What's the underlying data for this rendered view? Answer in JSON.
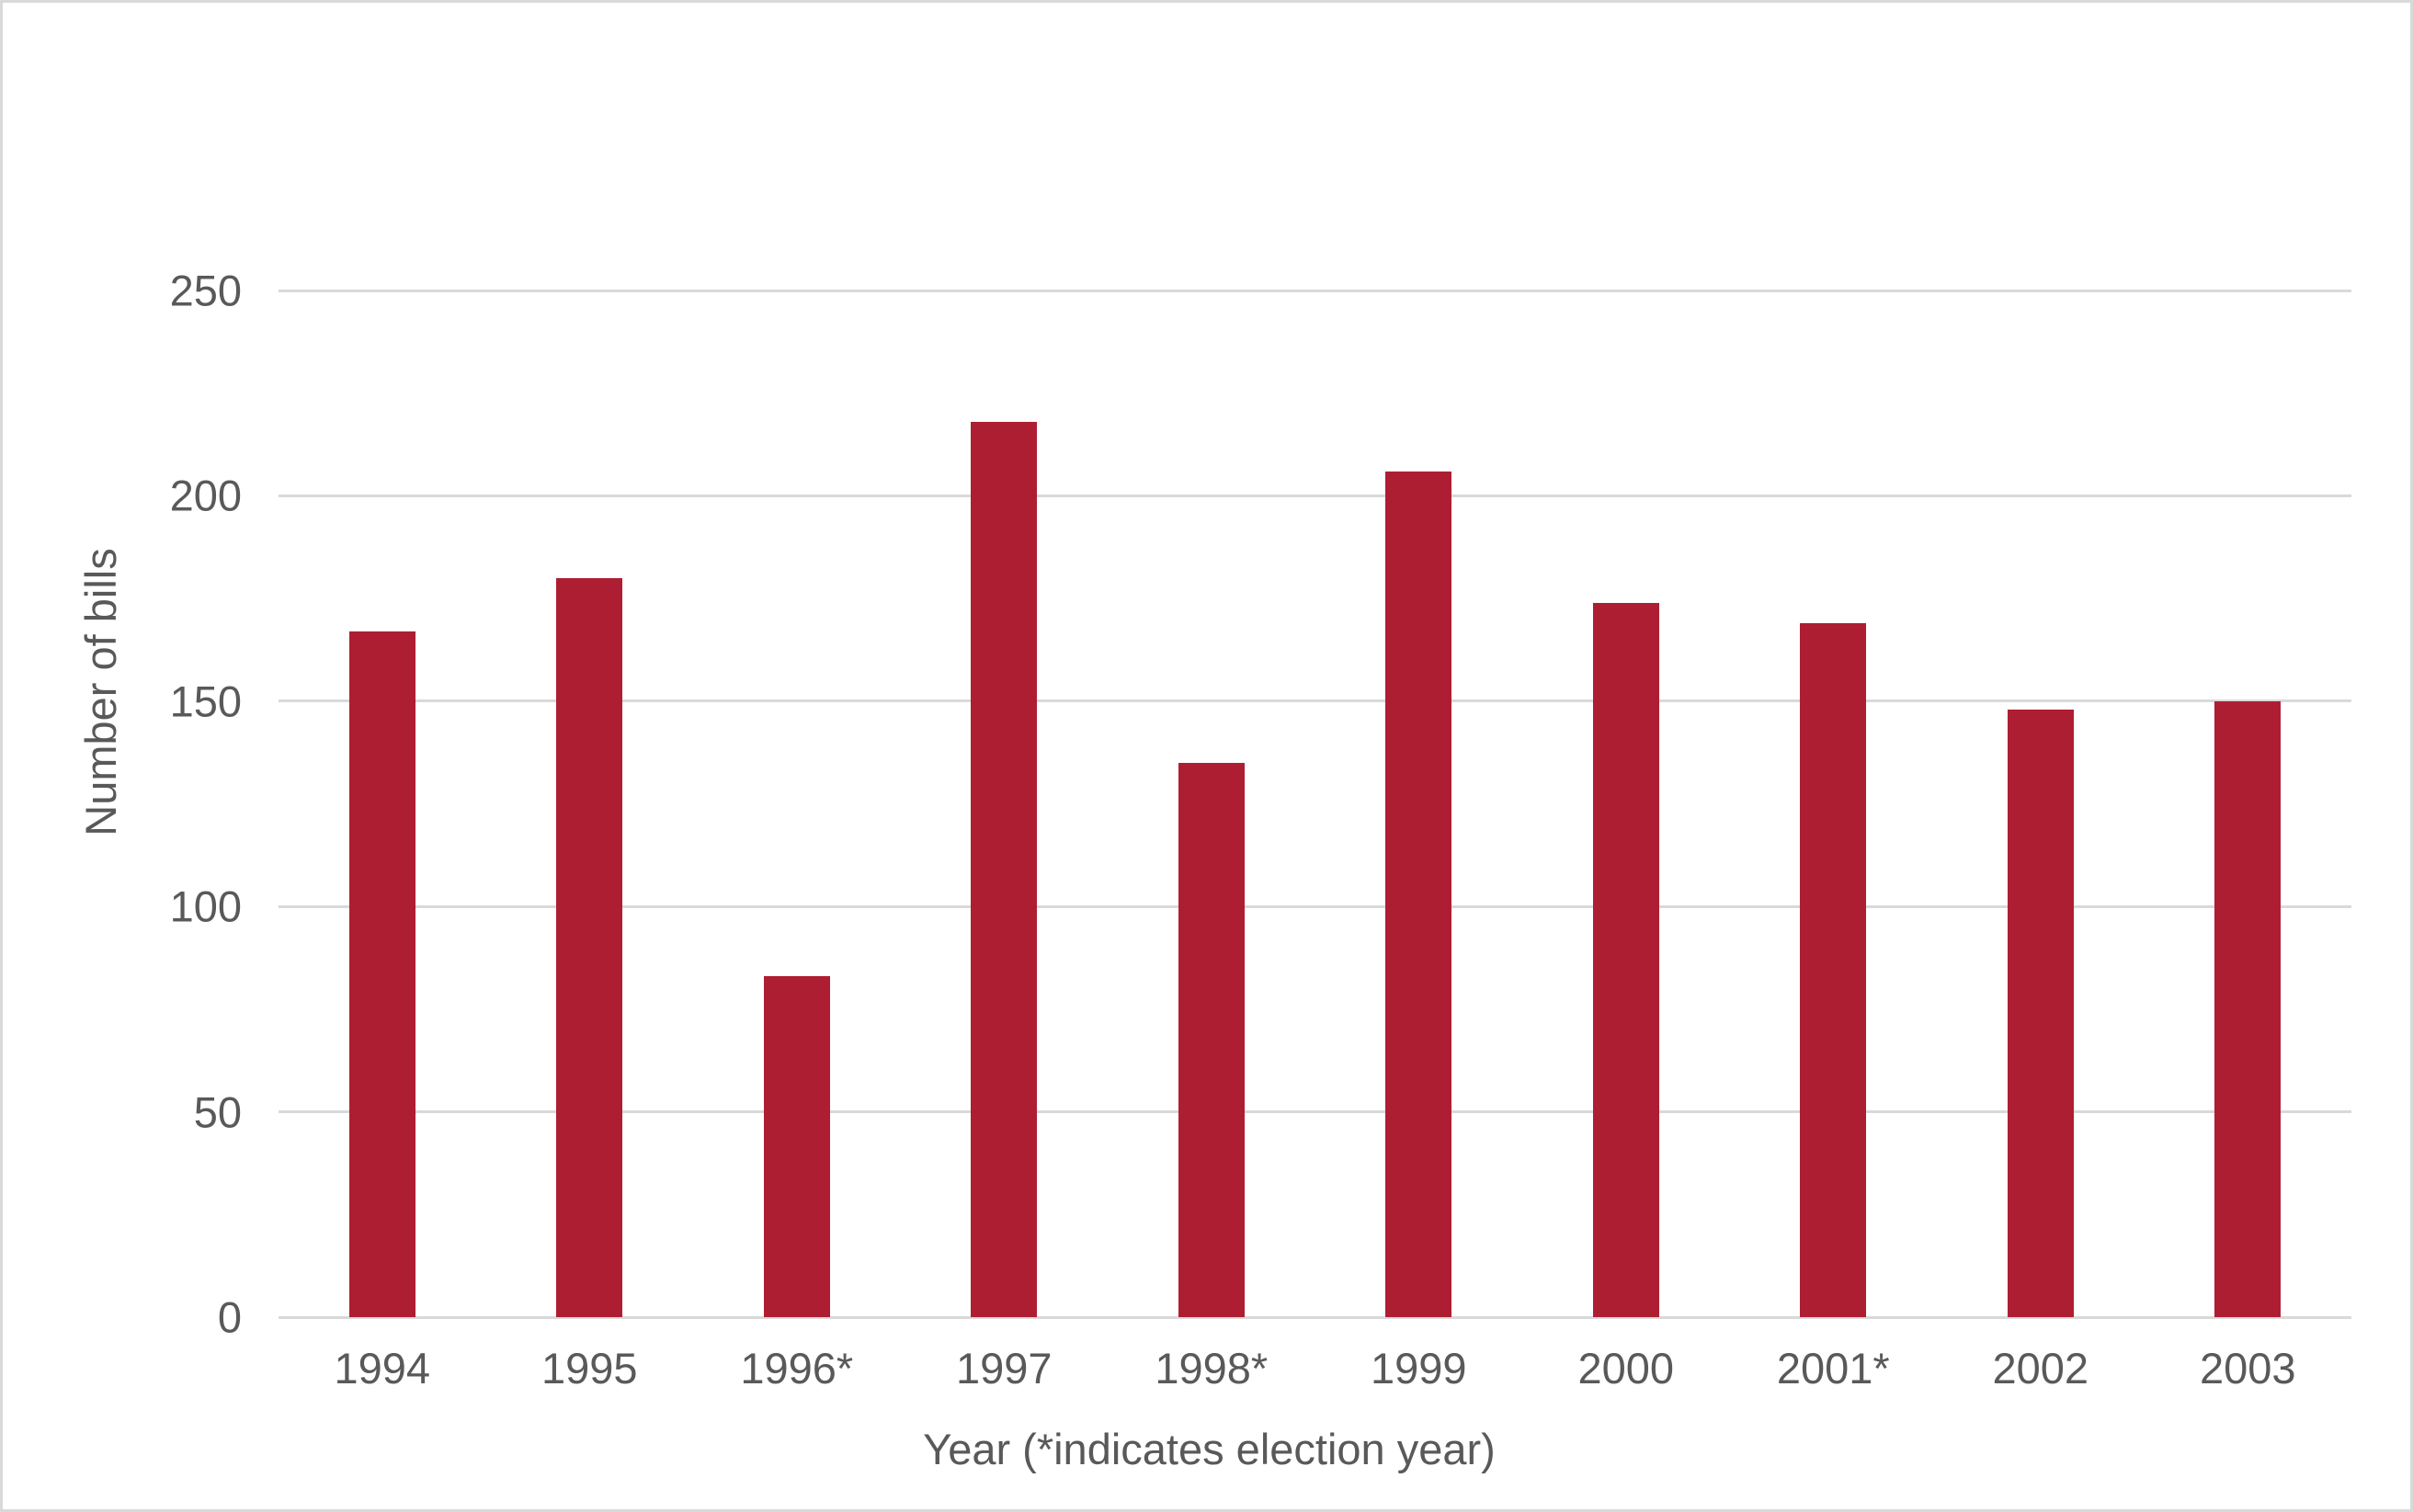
{
  "chart_data": {
    "type": "bar",
    "title": "",
    "categories": [
      "1994",
      "1995",
      "1996*",
      "1997",
      "1998*",
      "1999",
      "2000",
      "2001*",
      "2002",
      "2003"
    ],
    "values": [
      167,
      180,
      83,
      218,
      135,
      206,
      174,
      169,
      148,
      150
    ],
    "xlabel": "Year (*indicates election year)",
    "ylabel": "Number of bills",
    "ylim": [
      0,
      250
    ],
    "yticks": [
      0,
      50,
      100,
      150,
      200,
      250
    ],
    "grid": "horizontal-only",
    "legend": "none",
    "bar_color": "#AE1E32",
    "gridline_color": "#D9D9D9",
    "text_color": "#595959",
    "frame_border_color": "#D9D9D9",
    "background_color": "#FFFFFF"
  }
}
